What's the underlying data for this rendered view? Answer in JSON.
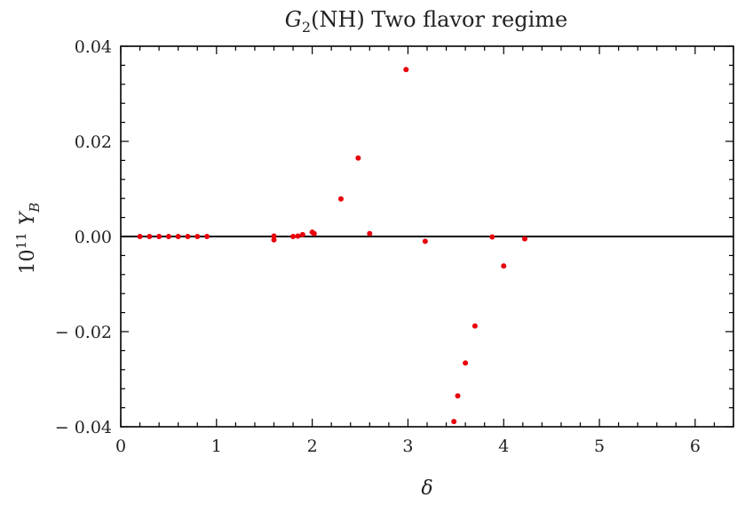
{
  "chart_data": {
    "type": "scatter",
    "title": "G₂(NH) Two flavor regime",
    "xlabel": "δ",
    "ylabel": "10¹¹ Y_B",
    "xlim": [
      0,
      6.4
    ],
    "ylim": [
      -0.04,
      0.04
    ],
    "x_ticks": [
      "0",
      "1",
      "2",
      "3",
      "4",
      "5",
      "6"
    ],
    "y_ticks": [
      "0.04",
      "0.02",
      "0.00",
      "− 0.02",
      "− 0.04"
    ],
    "grid": false,
    "zero_line": true,
    "point_color": "#e8000b",
    "series": [
      {
        "x": [
          0.2,
          0.3,
          0.4,
          0.5,
          0.6,
          0.7,
          0.8,
          0.9,
          1.6,
          1.6,
          1.8,
          1.85,
          1.9,
          2.0,
          2.02,
          2.3,
          2.48,
          2.6,
          2.98,
          3.18,
          3.48,
          3.52,
          3.6,
          3.7,
          3.88,
          4.0,
          4.22
        ],
        "y": [
          0.0,
          0.0,
          0.0,
          0.0,
          0.0,
          0.0,
          0.0,
          0.0,
          -0.0007,
          0.0001,
          0.0,
          0.0001,
          0.0004,
          0.0009,
          0.0006,
          0.0079,
          0.0165,
          0.0006,
          0.0351,
          -0.001,
          -0.0389,
          -0.0335,
          -0.0266,
          -0.0188,
          -0.0001,
          -0.0062,
          -0.0005
        ]
      }
    ]
  }
}
